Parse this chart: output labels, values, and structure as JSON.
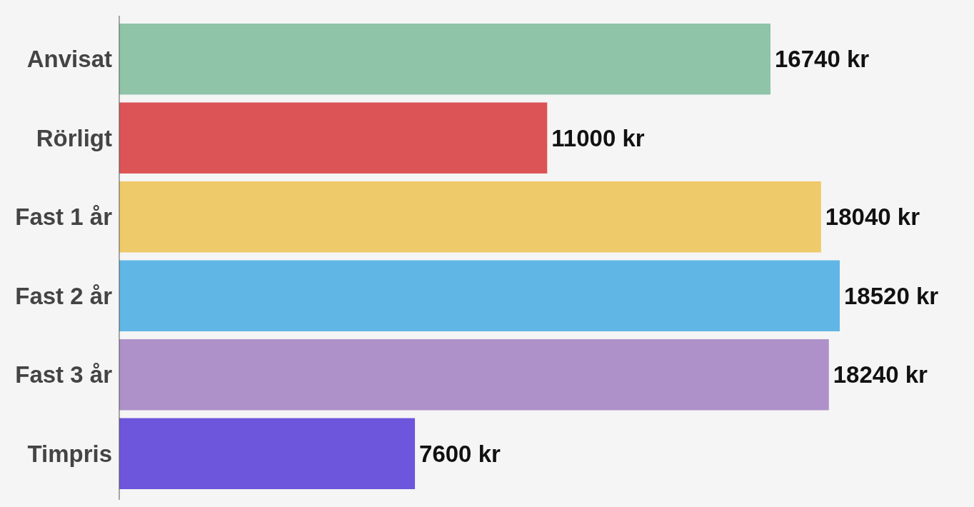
{
  "chart_data": {
    "type": "bar",
    "orientation": "horizontal",
    "categories": [
      "Anvisat",
      "Rörligt",
      "Fast 1 år",
      "Fast 2 år",
      "Fast 3 år",
      "Timpris"
    ],
    "values": [
      16740,
      11000,
      18040,
      18520,
      18240,
      7600
    ],
    "colors": [
      "#8fc4a9",
      "#dd5456",
      "#efca6a",
      "#60b7e5",
      "#ad91c8",
      "#6d55dc"
    ],
    "value_labels": [
      "16740 kr",
      "11000 kr",
      "18040 kr",
      "18520 kr",
      "18240 kr",
      "7600 kr"
    ]
  }
}
